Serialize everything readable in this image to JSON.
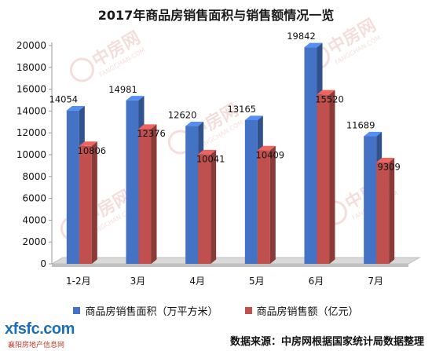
{
  "chart_data": {
    "type": "bar",
    "title": "2017年商品房销售面积与销售额情况一览",
    "categories": [
      "1-2月",
      "3月",
      "4月",
      "5月",
      "6月",
      "7月"
    ],
    "series": [
      {
        "name": "商品房销售面积（万平方米）",
        "values": [
          14054,
          14981,
          12620,
          13165,
          19842,
          11689
        ],
        "color": "#4472C4"
      },
      {
        "name": "商品房销售额（亿元）",
        "values": [
          10806,
          12376,
          10041,
          10409,
          15520,
          9309
        ],
        "color": "#C0504D"
      }
    ],
    "ylim": [
      0,
      20000
    ],
    "yticks": [
      0,
      2000,
      4000,
      6000,
      8000,
      10000,
      12000,
      14000,
      16000,
      18000,
      20000
    ],
    "grid": false,
    "legend": "bottom",
    "three_d": true
  },
  "footer": {
    "logo_mark": "xfsfc.com",
    "logo_sub": "襄阳房地产信息网",
    "source": "数据来源：中房网根据国家统计局数据整理"
  },
  "watermark": {
    "brand": "中房网",
    "domain": "FANGCHAN.COM"
  }
}
